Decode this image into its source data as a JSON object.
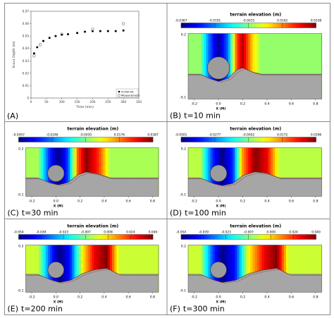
{
  "panel_a": {
    "letter": "(A)",
    "xlabel": "Time (min)",
    "ylabel": "Scour Depth (m)",
    "xticks": [
      "0",
      "50",
      "100",
      "150",
      "200",
      "250",
      "300",
      "350"
    ],
    "yticks": [
      "0",
      "0.01",
      "0.02",
      "0.03",
      "0.04",
      "0.05",
      "0.06",
      "0.07"
    ],
    "legend": [
      "FLOW-3D",
      "Measurement"
    ]
  },
  "panels": [
    {
      "letter": "(B)",
      "time": "t=10 min",
      "title": "terrain elevation (m)",
      "ticks": [
        "-0.0367",
        "-0.0191",
        "-0.0015",
        "0.0162",
        "0.0338"
      ],
      "show_x_label": true
    },
    {
      "letter": "(C)",
      "time": "t=30 min",
      "title": "terrain elevation (m)",
      "ticks": [
        "-0.0457",
        "-0.0246",
        "-0.0035",
        "0.0176",
        "0.0387"
      ],
      "show_x_label": true
    },
    {
      "letter": "(D)",
      "time": "t=100 min",
      "title": "terrain elevation (m)",
      "ticks": [
        "-0.0501",
        "-0.0277",
        "-0.0052",
        "0.0172",
        "0.0396"
      ],
      "show_x_label": true
    },
    {
      "letter": "(E)",
      "time": "t=200 min",
      "title": "terrain elevation (m)",
      "ticks": [
        "-0.054",
        "-0.039",
        "-0.023",
        "-0.007",
        "0.008",
        "0.024",
        "0.040"
      ],
      "show_x_label": true
    },
    {
      "letter": "(F)",
      "time": "t=300 min",
      "title": "terrain elevation (m)",
      "ticks": [
        "-0.054",
        "-0.039",
        "-0.023",
        "-0.007",
        "0.009",
        "0.024",
        "0.040"
      ],
      "show_x_label": true
    }
  ],
  "panel_axes": {
    "x_ticks": [
      "-0.2",
      "0.0",
      "0.2",
      "0.4",
      "0.6",
      "0.8"
    ],
    "y_ticks": [
      "0.2",
      "-0.1"
    ],
    "xlabel": "X (M)"
  },
  "colors": {
    "flow3d": "#000000",
    "measurement": "#777777",
    "sediment": "#a6a6a6",
    "cylinder": "#9c9c9c",
    "measured_profile": "#a04040"
  },
  "chart_data": [
    {
      "type": "scatter",
      "xlabel": "Time (min)",
      "ylabel": "Scour Depth (m)",
      "xlim": [
        0,
        350
      ],
      "ylim": [
        0,
        0.07
      ],
      "series": [
        {
          "name": "FLOW-3D",
          "x": [
            10,
            20,
            40,
            60,
            80,
            100,
            120,
            150,
            175,
            200,
            225,
            250,
            275,
            300
          ],
          "y": [
            0.036,
            0.041,
            0.046,
            0.0485,
            0.05,
            0.051,
            0.0515,
            0.0525,
            0.0535,
            0.054,
            0.054,
            0.054,
            0.054,
            0.0545
          ]
        },
        {
          "name": "Measurement",
          "x": [
            10,
            30,
            100,
            200,
            300
          ],
          "y": [
            0.034,
            0.043,
            0.0515,
            0.0555,
            0.06
          ]
        }
      ]
    },
    {
      "type": "heatmap",
      "title": "terrain elevation (m)",
      "xlabel": "X (M)",
      "xlim": [
        -0.25,
        0.85
      ],
      "ylim": [
        -0.1,
        0.2
      ],
      "panels": [
        {
          "time": "t=10 min",
          "clim": [
            -0.0367,
            0.0338
          ],
          "scour_min": -0.035,
          "dune_peak_x": 0.18,
          "dune_max": 0.03,
          "profile_x": [
            -0.25,
            -0.15,
            -0.08,
            0.0,
            0.08,
            0.15,
            0.2,
            0.28,
            0.35,
            0.85
          ],
          "profile_z": [
            0.0,
            0.0,
            -0.02,
            -0.035,
            -0.02,
            0.02,
            0.03,
            0.01,
            0.0,
            0.0
          ]
        },
        {
          "time": "t=30 min",
          "clim": [
            -0.0457,
            0.0387
          ],
          "scour_min": -0.045,
          "dune_peak_x": 0.25,
          "dune_max": 0.038,
          "profile_x": [
            -0.25,
            -0.15,
            -0.06,
            0.02,
            0.1,
            0.18,
            0.25,
            0.35,
            0.45,
            0.85
          ],
          "profile_z": [
            0.0,
            0.0,
            -0.03,
            -0.045,
            -0.03,
            0.02,
            0.038,
            0.025,
            0.0,
            0.0
          ]
        },
        {
          "time": "t=100 min",
          "clim": [
            -0.0501,
            0.0396
          ],
          "scour_min": -0.05,
          "dune_peak_x": 0.3,
          "dune_max": 0.039,
          "profile_x": [
            -0.25,
            -0.15,
            -0.05,
            0.03,
            0.12,
            0.2,
            0.3,
            0.4,
            0.5,
            0.85
          ],
          "profile_z": [
            0.0,
            0.0,
            -0.035,
            -0.05,
            -0.035,
            0.015,
            0.039,
            0.03,
            0.0,
            0.0
          ]
        },
        {
          "time": "t=200 min",
          "clim": [
            -0.054,
            0.04
          ],
          "scour_min": -0.054,
          "dune_peak_x": 0.42,
          "dune_max": 0.04,
          "profile_x": [
            -0.25,
            -0.15,
            -0.05,
            0.03,
            0.12,
            0.22,
            0.32,
            0.42,
            0.52,
            0.85
          ],
          "profile_z": [
            0.0,
            0.0,
            -0.035,
            -0.054,
            -0.04,
            0.005,
            0.03,
            0.04,
            0.0,
            0.0
          ]
        },
        {
          "time": "t=300 min",
          "clim": [
            -0.054,
            0.04
          ],
          "scour_min": -0.054,
          "dune_peak_x": 0.48,
          "dune_max": 0.04,
          "profile_x": [
            -0.25,
            -0.15,
            -0.05,
            0.03,
            0.14,
            0.25,
            0.38,
            0.48,
            0.58,
            0.85
          ],
          "profile_z": [
            0.0,
            0.0,
            -0.035,
            -0.054,
            -0.04,
            0.005,
            0.03,
            0.04,
            0.0,
            0.0
          ]
        }
      ]
    }
  ]
}
